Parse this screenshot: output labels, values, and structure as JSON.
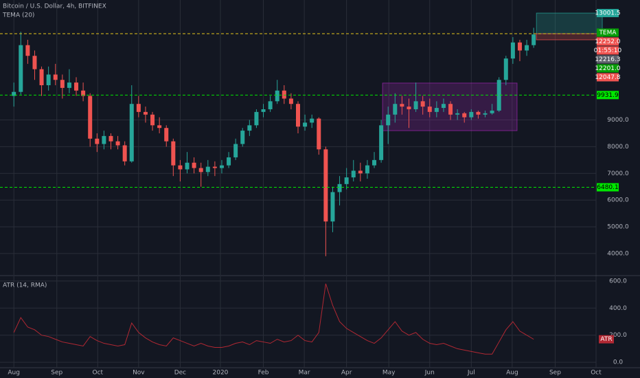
{
  "chart_data": [
    {
      "type": "candlestick",
      "title": "Bitcoin / U.S. Dollar, 4h, BITFINEX",
      "subtitle": "TEMA (20)",
      "up_color": "#26a69a",
      "down_color": "#ef5350",
      "open": [
        9900,
        10050,
        11800,
        11400,
        10900,
        10300,
        10700,
        10500,
        10200,
        10400,
        10100,
        9900,
        8300,
        8100,
        8400,
        8200,
        8050,
        7450,
        9600,
        9300,
        9200,
        8800,
        8700,
        8200,
        7300,
        7150,
        7400,
        7200,
        7050,
        7250,
        7200,
        7300,
        7600,
        8100,
        8600,
        8800,
        9300,
        9400,
        9700,
        10100,
        9800,
        9600,
        8750,
        8900,
        9050,
        7900,
        5200,
        6300,
        6600,
        6850,
        7100,
        7000,
        7300,
        7500,
        8800,
        9200,
        9600,
        9500,
        9400,
        9700,
        9500,
        9300,
        9450,
        9600,
        9200,
        9250,
        9100,
        9300,
        9200,
        9250,
        9350,
        10500,
        11300,
        11900,
        11600,
        11800
      ],
      "high": [
        10400,
        12300,
        12000,
        11600,
        11000,
        11000,
        11100,
        10700,
        10900,
        10600,
        10400,
        10000,
        8500,
        8600,
        8500,
        8400,
        8200,
        10300,
        9900,
        9500,
        9300,
        9100,
        8800,
        8300,
        7500,
        7800,
        7600,
        7400,
        7500,
        7450,
        7500,
        7800,
        8300,
        8700,
        9000,
        9400,
        9600,
        9900,
        10500,
        10300,
        10000,
        9700,
        9200,
        9200,
        9100,
        8000,
        6500,
        6900,
        7200,
        7500,
        7400,
        7500,
        7800,
        9000,
        9500,
        10000,
        9900,
        9800,
        10400,
        9900,
        9800,
        9700,
        9800,
        9700,
        9400,
        9300,
        9400,
        9350,
        9350,
        9600,
        10600,
        11400,
        12100,
        12000,
        12000,
        12450
      ],
      "low": [
        9500,
        9950,
        11100,
        10500,
        9900,
        10100,
        10300,
        9800,
        10000,
        9900,
        9700,
        8000,
        7800,
        7900,
        7900,
        7900,
        7300,
        7400,
        9100,
        8900,
        8600,
        8500,
        8000,
        6900,
        6700,
        7000,
        7000,
        6500,
        6900,
        6900,
        7000,
        7200,
        7500,
        8000,
        8400,
        8700,
        9100,
        9300,
        9600,
        9600,
        9400,
        8500,
        8600,
        8700,
        7700,
        3900,
        4800,
        5800,
        6400,
        6700,
        6700,
        6800,
        7200,
        7400,
        8100,
        8900,
        9200,
        8700,
        9300,
        9200,
        9100,
        9100,
        9300,
        9000,
        9000,
        8900,
        9000,
        9050,
        9100,
        9200,
        9300,
        10300,
        11100,
        11200,
        11400,
        11700
      ],
      "close": [
        10050,
        11800,
        11400,
        10900,
        10300,
        10700,
        10500,
        10200,
        10400,
        10100,
        9900,
        8300,
        8100,
        8400,
        8200,
        8050,
        7450,
        9600,
        9300,
        9200,
        8800,
        8700,
        8200,
        7300,
        7150,
        7400,
        7200,
        7050,
        7250,
        7200,
        7300,
        7600,
        8100,
        8600,
        8800,
        9300,
        9400,
        9700,
        10100,
        9800,
        9600,
        8750,
        8900,
        9050,
        7900,
        5200,
        6300,
        6600,
        6850,
        7100,
        7000,
        7300,
        7500,
        8800,
        9200,
        9600,
        9500,
        9400,
        9700,
        9500,
        9300,
        9450,
        9600,
        9200,
        9250,
        9100,
        9300,
        9200,
        9250,
        9350,
        10500,
        11300,
        11900,
        11600,
        11800,
        12200
      ],
      "xlim": [
        -2,
        84
      ],
      "xticks": [
        {
          "value": 0,
          "label": "Aug"
        },
        {
          "value": 6.2,
          "label": "Sep"
        },
        {
          "value": 12.1,
          "label": "Oct"
        },
        {
          "value": 18,
          "label": "Nov"
        },
        {
          "value": 24,
          "label": "Dec"
        },
        {
          "value": 29.8,
          "label": "2020"
        },
        {
          "value": 36,
          "label": "Feb"
        },
        {
          "value": 41.9,
          "label": "Mar"
        },
        {
          "value": 48,
          "label": "Apr"
        },
        {
          "value": 54.1,
          "label": "May"
        },
        {
          "value": 60,
          "label": "Jun"
        },
        {
          "value": 66,
          "label": "Jul"
        },
        {
          "value": 71.9,
          "label": "Aug"
        },
        {
          "value": 78.1,
          "label": "Sep"
        },
        {
          "value": 84,
          "label": "Oct"
        }
      ],
      "ylim": [
        3200,
        13490
      ],
      "yticks": [
        {
          "value": 4000,
          "label": "4000.0"
        },
        {
          "value": 5000,
          "label": "5000.0"
        },
        {
          "value": 6000,
          "label": "6000.0"
        },
        {
          "value": 7000,
          "label": "7000.0"
        },
        {
          "value": 8000,
          "label": "8000.0"
        },
        {
          "value": 9000,
          "label": "9000.0"
        }
      ],
      "grid": true,
      "hlines": [
        {
          "value": 9931.9,
          "label": "9931.9",
          "color": "#00e600"
        },
        {
          "value": 6480.1,
          "label": "6480.1",
          "color": "#00e600"
        },
        {
          "value": 12230,
          "color": "#e6c619"
        }
      ],
      "zones": [
        {
          "x": [
            53.2,
            72.6
          ],
          "y": [
            8600,
            10380
          ],
          "color": "#9c27b0"
        },
        {
          "x": [
            75.4,
            84.9
          ],
          "y": [
            12230,
            13000
          ],
          "color": "#26a69a"
        },
        {
          "x": [
            75.4,
            84.9
          ],
          "y": [
            12000,
            12230
          ],
          "color": "#ef5350"
        }
      ],
      "price_labels": [
        {
          "value": 13001.5,
          "label": "13001.5",
          "color": "#26a69a"
        },
        {
          "value": 12270,
          "label": "TEMA",
          "color": "#089c08"
        },
        {
          "value": 12252,
          "label": "12252.0",
          "color": "#ef5350"
        },
        {
          "label": "01:55:10",
          "color": "#ef5350"
        },
        {
          "value": 12216.3,
          "label": "12216.3",
          "color": "#5d606b"
        },
        {
          "value": 12201,
          "label": "12201.0",
          "color": "#089c08"
        },
        {
          "value": 12047.8,
          "label": "12047.8",
          "color": "#ef5350"
        }
      ]
    },
    {
      "type": "line",
      "title": "ATR (14, RMA)",
      "series": [
        {
          "name": "ATR",
          "color": "#b22833",
          "values": [
            220,
            330,
            260,
            240,
            200,
            190,
            170,
            150,
            140,
            130,
            120,
            190,
            160,
            140,
            130,
            120,
            130,
            290,
            220,
            180,
            150,
            130,
            120,
            180,
            160,
            140,
            120,
            140,
            120,
            110,
            110,
            120,
            140,
            150,
            130,
            160,
            150,
            140,
            170,
            150,
            160,
            200,
            160,
            150,
            220,
            580,
            420,
            300,
            250,
            220,
            190,
            160,
            140,
            180,
            240,
            300,
            230,
            200,
            220,
            170,
            140,
            130,
            140,
            120,
            100,
            90,
            80,
            70,
            60,
            60,
            150,
            240,
            300,
            230,
            200,
            170
          ]
        }
      ],
      "ylim": [
        -40,
        635
      ],
      "yticks": [
        {
          "value": 0,
          "label": "0.0"
        },
        {
          "value": 200,
          "label": "200.0"
        },
        {
          "value": 400,
          "label": "400.0"
        },
        {
          "value": 600,
          "label": "600.0"
        }
      ],
      "grid": true
    }
  ]
}
